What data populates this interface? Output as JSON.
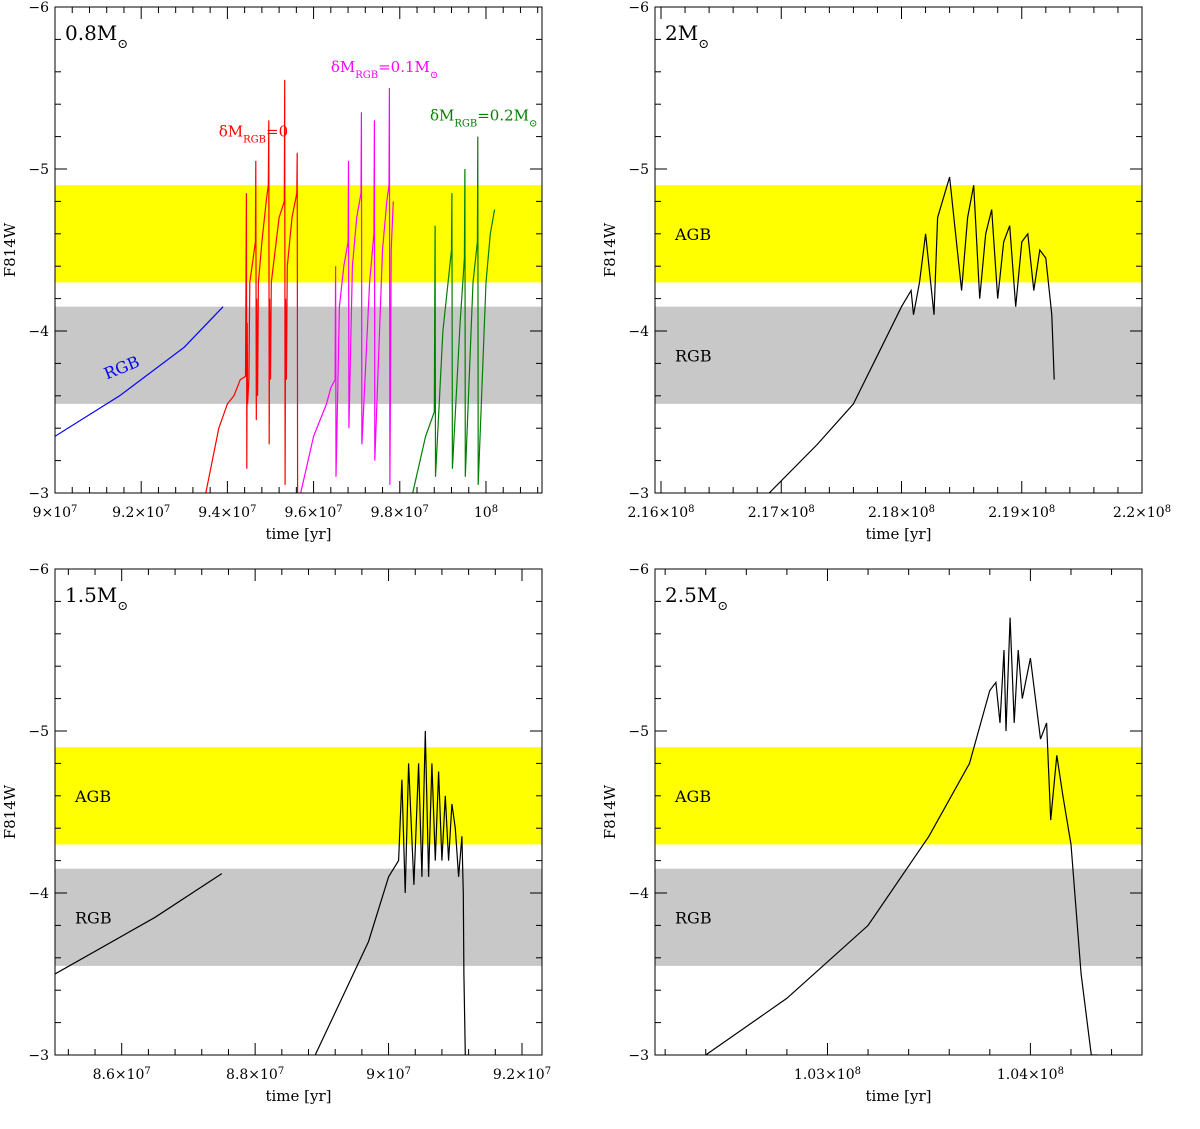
{
  "colors": {
    "agb_band": "#ffff00",
    "rgb_band": "#c8c8c8",
    "black": "#000000",
    "red": "#ff0000",
    "magenta": "#ff00ff",
    "green": "#008000",
    "blue": "#0000ff"
  },
  "chart_data": [
    {
      "type": "line",
      "id": "p08",
      "mass_label": "0.8M",
      "mass_suffix": "⊙",
      "xlabel": "time [yr]",
      "ylabel": "F814W",
      "xlim": [
        90000000,
        101300000
      ],
      "ylim": [
        -3,
        -6
      ],
      "y_ticks": [
        "−6",
        "−5",
        "−4",
        "−3"
      ],
      "x_ticks": [
        {
          "value": 90000000,
          "m": "9×10",
          "e": "7"
        },
        {
          "value": 92000000,
          "m": "9.2×10",
          "e": "7"
        },
        {
          "value": 94000000,
          "m": "9.4×10",
          "e": "7"
        },
        {
          "value": 96000000,
          "m": "9.6×10",
          "e": "7"
        },
        {
          "value": 98000000,
          "m": "9.8×10",
          "e": "7"
        },
        {
          "value": 100000000,
          "m": "10",
          "e": "8"
        }
      ],
      "bands": [
        {
          "name": "AGB",
          "range": [
            -4.3,
            -4.9
          ],
          "color": "#ffff00",
          "label": ""
        },
        {
          "name": "RGB",
          "range": [
            -3.55,
            -4.15
          ],
          "color": "#c8c8c8",
          "label": ""
        }
      ],
      "series": [
        {
          "color": "#0000ff",
          "x": [
            90000000,
            91500000,
            93000000,
            93900000
          ],
          "y": [
            -3.35,
            -3.6,
            -3.9,
            -4.15
          ]
        },
        {
          "color": "#ff0000",
          "x": [
            93500000,
            93800000,
            94000000,
            94150000,
            94300000,
            94420000,
            94440000,
            94450000,
            94460000,
            94470000,
            94500000,
            94520000,
            94600000,
            94650000,
            94660000,
            94670000,
            94680000,
            94700000,
            94720000,
            94800000,
            94900000,
            94950000,
            94960000,
            94970000,
            94980000,
            95000000,
            95020000,
            95200000,
            95320000,
            95330000,
            95340000,
            95350000,
            95370000,
            95390000,
            95500000,
            95610000,
            95620000,
            95630000,
            95640000
          ],
          "y": [
            -3.0,
            -3.4,
            -3.55,
            -3.6,
            -3.7,
            -3.72,
            -4.85,
            -3.15,
            -4.05,
            -3.55,
            -3.7,
            -4.3,
            -4.45,
            -4.55,
            -5.05,
            -3.45,
            -4.2,
            -3.6,
            -4.3,
            -4.55,
            -4.8,
            -4.9,
            -5.3,
            -3.3,
            -4.2,
            -3.7,
            -4.3,
            -4.7,
            -4.8,
            -5.55,
            -3.05,
            -4.2,
            -3.7,
            -4.4,
            -4.7,
            -4.85,
            -5.1,
            -3.0,
            -3.0
          ]
        },
        {
          "color": "#ff00ff",
          "x": [
            95700000,
            96000000,
            96300000,
            96400000,
            96500000,
            96510000,
            96520000,
            96600000,
            96700000,
            96800000,
            96810000,
            96820000,
            96900000,
            97000000,
            97100000,
            97110000,
            97120000,
            97300000,
            97400000,
            97410000,
            97420000,
            97600000,
            97700000,
            97750000,
            97760000,
            97770000,
            97800000,
            97850000
          ],
          "y": [
            -3.0,
            -3.35,
            -3.55,
            -3.65,
            -3.7,
            -4.4,
            -3.1,
            -4.15,
            -4.4,
            -4.55,
            -5.05,
            -3.4,
            -4.4,
            -4.7,
            -4.85,
            -5.35,
            -3.3,
            -4.3,
            -4.6,
            -5.3,
            -3.2,
            -4.5,
            -4.8,
            -4.9,
            -5.5,
            -3.05,
            -4.5,
            -4.8
          ]
        },
        {
          "color": "#008000",
          "x": [
            98300000,
            98600000,
            98800000,
            98820000,
            98830000,
            99000000,
            99200000,
            99210000,
            99220000,
            99400000,
            99500000,
            99510000,
            99520000,
            99700000,
            99800000,
            99810000,
            99820000,
            100000000,
            100100000,
            100200000
          ],
          "y": [
            -3.0,
            -3.35,
            -3.5,
            -4.65,
            -3.1,
            -4.0,
            -4.5,
            -4.85,
            -3.15,
            -4.05,
            -4.45,
            -5.0,
            -3.1,
            -4.3,
            -4.55,
            -5.2,
            -3.05,
            -4.3,
            -4.6,
            -4.75
          ]
        }
      ],
      "labels": [
        {
          "kind": "rgb",
          "text": "RGB",
          "x": 91200000,
          "y": -3.7,
          "color": "#0000ff"
        },
        {
          "kind": "dm",
          "pre": "δM",
          "sub": "RGB",
          "post": "=0",
          "x": 93800000,
          "y": -5.2,
          "color": "#ff0000"
        },
        {
          "kind": "dm",
          "pre": "δM",
          "sub": "RGB",
          "post": "=0.1M",
          "sun": "⊙",
          "x": 96400000,
          "y": -5.6,
          "color": "#ff00ff"
        },
        {
          "kind": "dm",
          "pre": "δM",
          "sub": "RGB",
          "post": "=0.2M",
          "sun": "⊙",
          "x": 98700000,
          "y": -5.3,
          "color": "#008000"
        }
      ]
    },
    {
      "type": "line",
      "id": "p2",
      "mass_label": "2M",
      "mass_suffix": "⊙",
      "xlabel": "time [yr]",
      "ylabel": "F814W",
      "xlim": [
        215950000,
        220000000
      ],
      "ylim": [
        -3,
        -6
      ],
      "y_ticks": [
        "−6",
        "−5",
        "−4",
        "−3"
      ],
      "x_ticks": [
        {
          "value": 216000000,
          "m": "2.16×10",
          "e": "8"
        },
        {
          "value": 217000000,
          "m": "2.17×10",
          "e": "8"
        },
        {
          "value": 218000000,
          "m": "2.18×10",
          "e": "8"
        },
        {
          "value": 219000000,
          "m": "2.19×10",
          "e": "8"
        },
        {
          "value": 220000000,
          "m": "2.2×10",
          "e": "8"
        }
      ],
      "bands": [
        {
          "name": "AGB",
          "range": [
            -4.3,
            -4.9
          ],
          "color": "#ffff00",
          "label": "AGB"
        },
        {
          "name": "RGB",
          "range": [
            -3.55,
            -4.15
          ],
          "color": "#c8c8c8",
          "label": "RGB"
        }
      ],
      "series": [
        {
          "color": "#000000",
          "x": [
            216900000,
            217300000,
            217600000,
            217800000,
            218000000,
            218080000,
            218100000,
            218150000,
            218200000,
            218270000,
            218300000,
            218400000,
            218500000,
            218550000,
            218600000,
            218650000,
            218700000,
            218750000,
            218800000,
            218850000,
            218900000,
            218950000,
            219000000,
            219050000,
            219100000,
            219150000,
            219200000,
            219250000,
            219270000
          ],
          "y": [
            -3.0,
            -3.3,
            -3.55,
            -3.85,
            -4.15,
            -4.25,
            -4.1,
            -4.3,
            -4.6,
            -4.1,
            -4.7,
            -4.95,
            -4.25,
            -4.7,
            -4.9,
            -4.2,
            -4.6,
            -4.75,
            -4.2,
            -4.55,
            -4.65,
            -4.15,
            -4.55,
            -4.6,
            -4.25,
            -4.5,
            -4.45,
            -4.1,
            -3.7
          ]
        }
      ],
      "labels": []
    },
    {
      "type": "line",
      "id": "p15",
      "mass_label": "1.5M",
      "mass_suffix": "⊙",
      "xlabel": "time [yr]",
      "ylabel": "F814W",
      "xlim": [
        85000000,
        92300000
      ],
      "ylim": [
        -3,
        -6
      ],
      "y_ticks": [
        "−6",
        "−5",
        "−4",
        "−3"
      ],
      "x_ticks": [
        {
          "value": 86000000,
          "m": "8.6×10",
          "e": "7"
        },
        {
          "value": 88000000,
          "m": "8.8×10",
          "e": "7"
        },
        {
          "value": 90000000,
          "m": "9×10",
          "e": "7"
        },
        {
          "value": 92000000,
          "m": "9.2×10",
          "e": "7"
        }
      ],
      "bands": [
        {
          "name": "AGB",
          "range": [
            -4.3,
            -4.9
          ],
          "color": "#ffff00",
          "label": "AGB"
        },
        {
          "name": "RGB",
          "range": [
            -3.55,
            -4.15
          ],
          "color": "#c8c8c8",
          "label": "RGB"
        }
      ],
      "series": [
        {
          "color": "#000000",
          "x": [
            85000000,
            86500000,
            87500000
          ],
          "y": [
            -3.5,
            -3.85,
            -4.12
          ]
        },
        {
          "color": "#000000",
          "x": [
            88900000,
            89300000,
            89700000,
            90000000,
            90150000,
            90200000,
            90250000,
            90300000,
            90380000,
            90450000,
            90500000,
            90550000,
            90600000,
            90650000,
            90700000,
            90750000,
            90800000,
            90850000,
            90900000,
            90950000,
            91000000,
            91050000,
            91100000,
            91120000,
            91130000,
            91150000
          ],
          "y": [
            -3.0,
            -3.35,
            -3.7,
            -4.1,
            -4.2,
            -4.7,
            -4.0,
            -4.8,
            -4.05,
            -4.8,
            -4.1,
            -5.0,
            -4.1,
            -4.8,
            -4.2,
            -4.75,
            -4.2,
            -4.6,
            -4.2,
            -4.55,
            -4.4,
            -4.1,
            -4.35,
            -4.0,
            -3.5,
            -3.0
          ]
        }
      ],
      "labels": []
    },
    {
      "type": "line",
      "id": "p25",
      "mass_label": "2.5M",
      "mass_suffix": "⊙",
      "xlabel": "time [yr]",
      "ylabel": "F814W",
      "xlim": [
        102150000,
        104550000
      ],
      "ylim": [
        -3,
        -6
      ],
      "y_ticks": [
        "−6",
        "−5",
        "−4",
        "−3"
      ],
      "x_ticks": [
        {
          "value": 103000000,
          "m": "1.03×10",
          "e": "8"
        },
        {
          "value": 104000000,
          "m": "1.04×10",
          "e": "8"
        }
      ],
      "bands": [
        {
          "name": "AGB",
          "range": [
            -4.3,
            -4.9
          ],
          "color": "#ffff00",
          "label": "AGB"
        },
        {
          "name": "RGB",
          "range": [
            -3.55,
            -4.15
          ],
          "color": "#c8c8c8",
          "label": "RGB"
        }
      ],
      "series": [
        {
          "color": "#000000",
          "x": [
            102400000,
            102800000,
            103200000,
            103500000,
            103700000,
            103800000,
            103830000,
            103850000,
            103870000,
            103880000,
            103900000,
            103920000,
            103940000,
            103960000,
            104000000,
            104050000,
            104080000,
            104100000,
            104130000,
            104160000,
            104200000,
            104250000,
            104300000,
            104330000
          ],
          "y": [
            -3.0,
            -3.35,
            -3.8,
            -4.35,
            -4.8,
            -5.25,
            -5.3,
            -5.05,
            -5.5,
            -5.0,
            -5.7,
            -5.05,
            -5.5,
            -5.2,
            -5.45,
            -4.95,
            -5.05,
            -4.45,
            -4.85,
            -4.6,
            -4.3,
            -3.5,
            -3.0,
            -3.0
          ]
        }
      ],
      "labels": []
    }
  ]
}
